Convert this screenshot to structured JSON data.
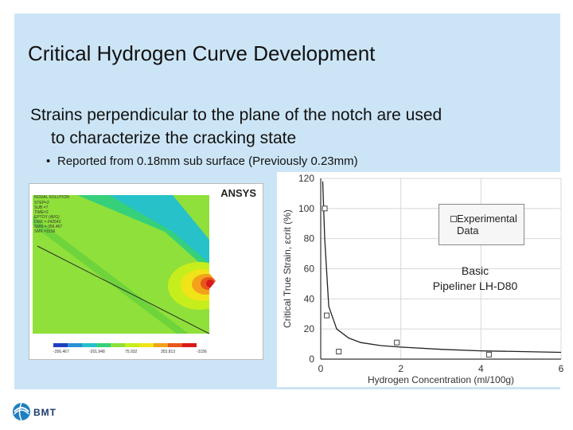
{
  "slide": {
    "title": "Critical Hydrogen Curve Development",
    "body_line1": "Strains perpendicular to the plane of the notch are used",
    "body_line2": "to characterize the cracking state",
    "bullet": "Reported from 0.18mm sub surface (Previously 0.23mm)",
    "bullet_marker": "•"
  },
  "fea_image": {
    "logo": "ANSYS",
    "legend_labels": [
      "-356.467",
      "-201.948",
      "75.932",
      "353.813",
      "-3156"
    ],
    "colors": [
      "#1f3fbf",
      "#2a8fd6",
      "#27c1c9",
      "#36d07a",
      "#8fe03a",
      "#c6ee1c",
      "#f0e418",
      "#f3a11a",
      "#e8561c",
      "#d81a1a"
    ]
  },
  "chart_data": {
    "type": "scatter",
    "title": "",
    "xlabel": "Hydrogen Concentration (ml/100g)",
    "ylabel": "Critical True Strain, εcrit (%)",
    "xlim": [
      0,
      6
    ],
    "ylim": [
      0,
      120
    ],
    "x_ticks": [
      "0",
      "2",
      "4",
      "6"
    ],
    "y_ticks": [
      "0",
      "20",
      "40",
      "60",
      "80",
      "100",
      "120"
    ],
    "grid": true,
    "series": [
      {
        "name": "Experimental Data",
        "marker": "open-square",
        "points": [
          [
            0.1,
            100
          ],
          [
            0.15,
            29
          ],
          [
            0.45,
            5
          ],
          [
            1.9,
            11
          ],
          [
            4.2,
            3
          ]
        ]
      }
    ],
    "fit_curve": [
      [
        0.05,
        118
      ],
      [
        0.1,
        80
      ],
      [
        0.2,
        35
      ],
      [
        0.4,
        20
      ],
      [
        0.7,
        14
      ],
      [
        1.0,
        11
      ],
      [
        1.5,
        9
      ],
      [
        2,
        8
      ],
      [
        3,
        6.5
      ],
      [
        4,
        5.5
      ],
      [
        5,
        5
      ],
      [
        6,
        4.5
      ]
    ],
    "legend_placement": "top-right",
    "annotation": [
      "Basic",
      "Pipeliner LH-D80"
    ]
  },
  "footer": {
    "logo": "BMT",
    "accent": "#1f7fc0"
  }
}
